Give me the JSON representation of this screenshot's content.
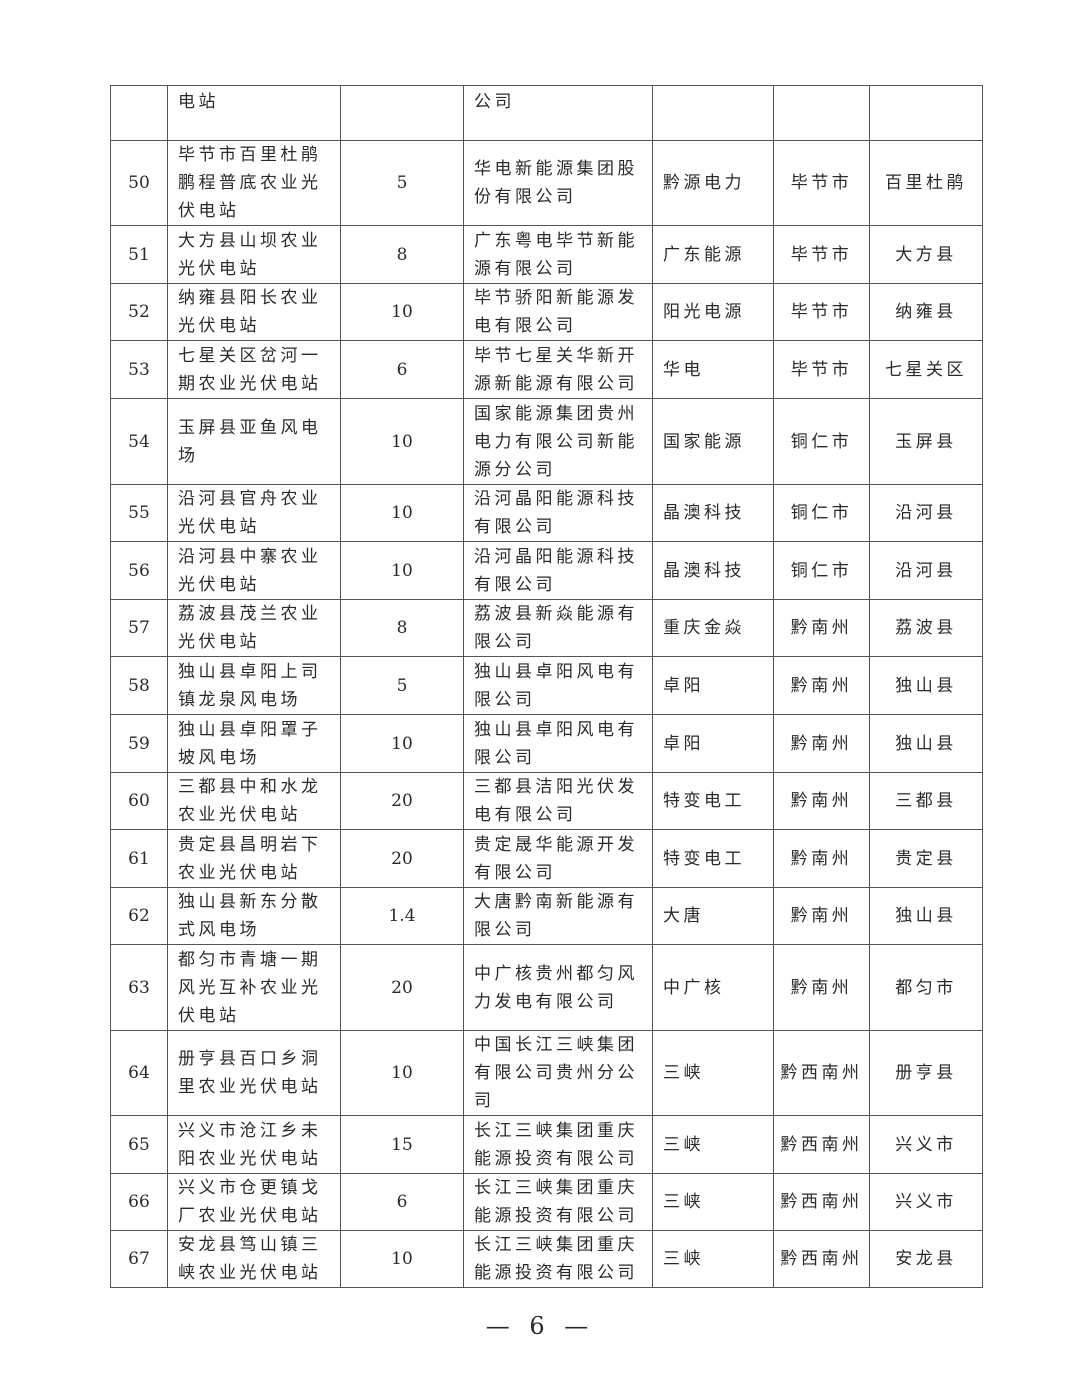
{
  "table": {
    "continuation_row": {
      "name": "电站",
      "company": "公司"
    },
    "rows": [
      {
        "no": "50",
        "name": "毕节市百里杜鹃鹏程普底农业光伏电站",
        "capacity": "5",
        "company": "华电新能源集团股份有限公司",
        "group": "黔源电力",
        "city": "毕节市",
        "county": "百里杜鹃"
      },
      {
        "no": "51",
        "name": "大方县山坝农业光伏电站",
        "capacity": "8",
        "company": "广东粤电毕节新能源有限公司",
        "group": "广东能源",
        "city": "毕节市",
        "county": "大方县"
      },
      {
        "no": "52",
        "name": "纳雍县阳长农业光伏电站",
        "capacity": "10",
        "company": "毕节骄阳新能源发电有限公司",
        "group": "阳光电源",
        "city": "毕节市",
        "county": "纳雍县"
      },
      {
        "no": "53",
        "name": "七星关区岔河一期农业光伏电站",
        "capacity": "6",
        "company": "毕节七星关华新开源新能源有限公司",
        "group": "华电",
        "city": "毕节市",
        "county": "七星关区"
      },
      {
        "no": "54",
        "name": "玉屏县亚鱼风电场",
        "capacity": "10",
        "company": "国家能源集团贵州电力有限公司新能源分公司",
        "group": "国家能源",
        "city": "铜仁市",
        "county": "玉屏县"
      },
      {
        "no": "55",
        "name": "沿河县官舟农业光伏电站",
        "capacity": "10",
        "company": "沿河晶阳能源科技有限公司",
        "group": "晶澳科技",
        "city": "铜仁市",
        "county": "沿河县"
      },
      {
        "no": "56",
        "name": "沿河县中寨农业光伏电站",
        "capacity": "10",
        "company": "沿河晶阳能源科技有限公司",
        "group": "晶澳科技",
        "city": "铜仁市",
        "county": "沿河县"
      },
      {
        "no": "57",
        "name": "荔波县茂兰农业光伏电站",
        "capacity": "8",
        "company": "荔波县新焱能源有限公司",
        "group": "重庆金焱",
        "city": "黔南州",
        "county": "荔波县"
      },
      {
        "no": "58",
        "name": "独山县卓阳上司镇龙泉风电场",
        "capacity": "5",
        "company": "独山县卓阳风电有限公司",
        "group": "卓阳",
        "city": "黔南州",
        "county": "独山县"
      },
      {
        "no": "59",
        "name": "独山县卓阳罩子坡风电场",
        "capacity": "10",
        "company": "独山县卓阳风电有限公司",
        "group": "卓阳",
        "city": "黔南州",
        "county": "独山县"
      },
      {
        "no": "60",
        "name": "三都县中和水龙农业光伏电站",
        "capacity": "20",
        "company": "三都县洁阳光伏发电有限公司",
        "group": "特变电工",
        "city": "黔南州",
        "county": "三都县"
      },
      {
        "no": "61",
        "name": "贵定县昌明岩下农业光伏电站",
        "capacity": "20",
        "company": "贵定晟华能源开发有限公司",
        "group": "特变电工",
        "city": "黔南州",
        "county": "贵定县"
      },
      {
        "no": "62",
        "name": "独山县新东分散式风电场",
        "capacity": "1.4",
        "company": "大唐黔南新能源有限公司",
        "group": "大唐",
        "city": "黔南州",
        "county": "独山县"
      },
      {
        "no": "63",
        "name": "都匀市青塘一期风光互补农业光伏电站",
        "capacity": "20",
        "company": "中广核贵州都匀风力发电有限公司",
        "group": "中广核",
        "city": "黔南州",
        "county": "都匀市"
      },
      {
        "no": "64",
        "name": "册亨县百口乡洞里农业光伏电站",
        "capacity": "10",
        "company": "中国长江三峡集团有限公司贵州分公司",
        "group": "三峡",
        "city": "黔西南州",
        "county": "册亨县"
      },
      {
        "no": "65",
        "name": "兴义市沧江乡未阳农业光伏电站",
        "capacity": "15",
        "company": "长江三峡集团重庆能源投资有限公司",
        "group": "三峡",
        "city": "黔西南州",
        "county": "兴义市"
      },
      {
        "no": "66",
        "name": "兴义市仓更镇戈厂农业光伏电站",
        "capacity": "6",
        "company": "长江三峡集团重庆能源投资有限公司",
        "group": "三峡",
        "city": "黔西南州",
        "county": "兴义市"
      },
      {
        "no": "67",
        "name": "安龙县笃山镇三峡农业光伏电站",
        "capacity": "10",
        "company": "长江三峡集团重庆能源投资有限公司",
        "group": "三峡",
        "city": "黔西南州",
        "county": "安龙县"
      }
    ]
  },
  "footer": {
    "page_number": "— 6 —"
  }
}
